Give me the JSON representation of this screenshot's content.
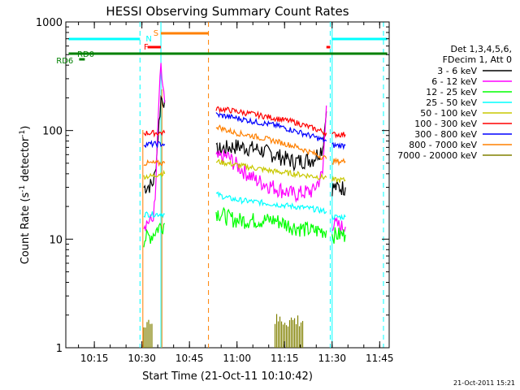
{
  "chart_data": {
    "type": "line",
    "title": "HESSI Observing Summary Count Rates",
    "xlabel": "Start Time (21-Oct-11 10:10:42)",
    "ylabel_main": "Count Rate (s",
    "ylabel_sup1": "-1",
    "ylabel_mid": " detector",
    "ylabel_sup2": "-1",
    "ylabel_end": ")",
    "ylog": true,
    "ylim": [
      1,
      1000
    ],
    "xlim_minutes": [
      10.1,
      11.8
    ],
    "x_ticks": [
      "10:15",
      "10:30",
      "10:45",
      "11:00",
      "11:15",
      "11:30",
      "11:45"
    ],
    "x_tick_hours": [
      10.25,
      10.5,
      10.75,
      11.0,
      11.25,
      11.5,
      11.75
    ],
    "y_ticks": [
      "1",
      "10",
      "100",
      "1000"
    ],
    "y_tick_values": [
      1,
      10,
      100,
      1000
    ],
    "legend_title_1": "Det 1,3,4,5,6,",
    "legend_title_2": "FDecim 1, Att 0",
    "footer_timestamp": "21-Oct-2011 15:21",
    "flags": {
      "S": {
        "label": "S",
        "color": "#ff8000"
      },
      "N": {
        "label": "N",
        "color": "#00ffff"
      },
      "F": {
        "label": "F",
        "color": "#ff0000"
      },
      "RD0": {
        "label": "RD0",
        "color": "#008000"
      },
      "RD6": {
        "label": "RD6",
        "color": "#008000"
      }
    },
    "series": [
      {
        "name": "3 - 6 keV",
        "color": "#000000",
        "seg1": [
          [
            10.51,
            30
          ],
          [
            10.555,
            32
          ],
          [
            10.57,
            40
          ],
          [
            10.6,
            200
          ],
          [
            10.62,
            190
          ]
        ],
        "seg2": [
          [
            10.89,
            65
          ],
          [
            10.95,
            70
          ],
          [
            11.0,
            72
          ],
          [
            11.1,
            68
          ],
          [
            11.2,
            60
          ],
          [
            11.3,
            52
          ],
          [
            11.4,
            55
          ],
          [
            11.45,
            70
          ],
          [
            11.47,
            150
          ]
        ],
        "seg3": [
          [
            11.5,
            30
          ],
          [
            11.55,
            30
          ],
          [
            11.57,
            30
          ]
        ]
      },
      {
        "name": "6 - 12 keV",
        "color": "#ff00ff",
        "seg1": [
          [
            10.51,
            14
          ],
          [
            10.555,
            15
          ],
          [
            10.57,
            22
          ],
          [
            10.59,
            200
          ],
          [
            10.6,
            370
          ],
          [
            10.62,
            180
          ]
        ],
        "seg2": [
          [
            10.89,
            55
          ],
          [
            10.95,
            58
          ],
          [
            11.0,
            48
          ],
          [
            11.1,
            35
          ],
          [
            11.2,
            30
          ],
          [
            11.3,
            26
          ],
          [
            11.4,
            28
          ],
          [
            11.45,
            40
          ],
          [
            11.47,
            170
          ]
        ],
        "seg3": [
          [
            11.5,
            14
          ],
          [
            11.55,
            13
          ],
          [
            11.57,
            13
          ]
        ]
      },
      {
        "name": "12 - 25 keV",
        "color": "#00ff00",
        "seg1": [
          [
            10.51,
            10
          ],
          [
            10.555,
            11
          ],
          [
            10.59,
            13
          ],
          [
            10.62,
            14
          ]
        ],
        "seg2": [
          [
            10.89,
            18
          ],
          [
            10.95,
            16
          ],
          [
            11.0,
            15
          ],
          [
            11.1,
            15
          ],
          [
            11.2,
            15
          ],
          [
            11.3,
            13
          ],
          [
            11.4,
            12
          ],
          [
            11.47,
            12
          ]
        ],
        "seg3": [
          [
            11.5,
            11
          ],
          [
            11.55,
            11
          ],
          [
            11.57,
            11
          ]
        ]
      },
      {
        "name": "25 - 50 keV",
        "color": "#00ffff",
        "seg1": [
          [
            10.51,
            17
          ],
          [
            10.555,
            17
          ],
          [
            10.59,
            17
          ],
          [
            10.62,
            17
          ]
        ],
        "seg2": [
          [
            10.89,
            26
          ],
          [
            10.95,
            24
          ],
          [
            11.0,
            23
          ],
          [
            11.1,
            22
          ],
          [
            11.2,
            21
          ],
          [
            11.3,
            20
          ],
          [
            11.4,
            19
          ],
          [
            11.47,
            18
          ]
        ],
        "seg3": [
          [
            11.5,
            16
          ],
          [
            11.55,
            16
          ],
          [
            11.57,
            16
          ]
        ]
      },
      {
        "name": "50 - 100 keV",
        "color": "#c8c800",
        "seg1": [
          [
            10.51,
            38
          ],
          [
            10.555,
            38
          ],
          [
            10.59,
            40
          ],
          [
            10.62,
            40
          ]
        ],
        "seg2": [
          [
            10.89,
            52
          ],
          [
            10.95,
            50
          ],
          [
            11.0,
            48
          ],
          [
            11.1,
            45
          ],
          [
            11.2,
            42
          ],
          [
            11.3,
            40
          ],
          [
            11.4,
            38
          ],
          [
            11.47,
            37
          ]
        ],
        "seg3": [
          [
            11.5,
            35
          ],
          [
            11.55,
            35
          ],
          [
            11.57,
            35
          ]
        ]
      },
      {
        "name": "100 - 300 keV",
        "color": "#ff0000",
        "seg1": [
          [
            10.51,
            95
          ],
          [
            10.555,
            95
          ],
          [
            10.59,
            95
          ],
          [
            10.62,
            95
          ]
        ],
        "seg2": [
          [
            10.89,
            160
          ],
          [
            10.95,
            155
          ],
          [
            11.0,
            150
          ],
          [
            11.1,
            140
          ],
          [
            11.2,
            130
          ],
          [
            11.3,
            120
          ],
          [
            11.4,
            105
          ],
          [
            11.47,
            95
          ]
        ],
        "seg3": [
          [
            11.5,
            92
          ],
          [
            11.55,
            92
          ],
          [
            11.57,
            92
          ]
        ]
      },
      {
        "name": "300 - 800 keV",
        "color": "#0000ff",
        "seg1": [
          [
            10.51,
            75
          ],
          [
            10.555,
            75
          ],
          [
            10.59,
            75
          ],
          [
            10.62,
            75
          ]
        ],
        "seg2": [
          [
            10.89,
            140
          ],
          [
            10.95,
            135
          ],
          [
            11.0,
            130
          ],
          [
            11.1,
            120
          ],
          [
            11.2,
            112
          ],
          [
            11.3,
            100
          ],
          [
            11.4,
            88
          ],
          [
            11.47,
            80
          ]
        ],
        "seg3": [
          [
            11.5,
            73
          ],
          [
            11.55,
            73
          ],
          [
            11.57,
            73
          ]
        ]
      },
      {
        "name": "800 - 7000 keV",
        "color": "#ff8000",
        "seg1": [
          [
            10.51,
            50
          ],
          [
            10.555,
            50
          ],
          [
            10.59,
            50
          ],
          [
            10.62,
            50
          ]
        ],
        "seg2": [
          [
            10.89,
            110
          ],
          [
            10.95,
            100
          ],
          [
            11.0,
            95
          ],
          [
            11.1,
            88
          ],
          [
            11.2,
            80
          ],
          [
            11.3,
            72
          ],
          [
            11.4,
            62
          ],
          [
            11.47,
            55
          ]
        ],
        "seg3": [
          [
            11.5,
            52
          ],
          [
            11.55,
            52
          ],
          [
            11.57,
            52
          ]
        ]
      },
      {
        "name": "7000 - 20000 keV",
        "color": "#808000",
        "seg1": [
          [
            10.51,
            1.5
          ],
          [
            10.56,
            1.5
          ]
        ],
        "seg2": [
          [
            11.2,
            1.6
          ],
          [
            11.35,
            1.6
          ]
        ],
        "seg3": []
      }
    ]
  }
}
